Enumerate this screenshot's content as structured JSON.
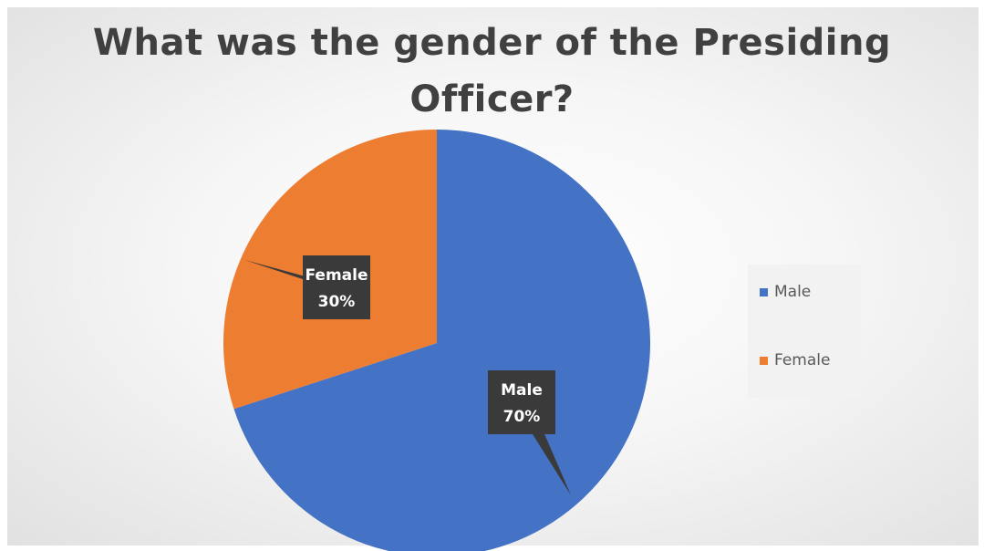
{
  "chart_data": {
    "type": "pie",
    "title_lines": [
      "What was the gender of the Presiding",
      "Officer?"
    ],
    "categories": [
      "Male",
      "Female"
    ],
    "values": [
      70,
      30
    ],
    "colors": [
      "#4472c4",
      "#ed7d31"
    ],
    "data_labels": [
      {
        "category": "Male",
        "percent": "70%"
      },
      {
        "category": "Female",
        "percent": "30%"
      }
    ],
    "legend": {
      "position": "right",
      "items": [
        {
          "label": "Male",
          "color": "#4472c4"
        },
        {
          "label": "Female",
          "color": "#ed7d31"
        }
      ]
    }
  }
}
